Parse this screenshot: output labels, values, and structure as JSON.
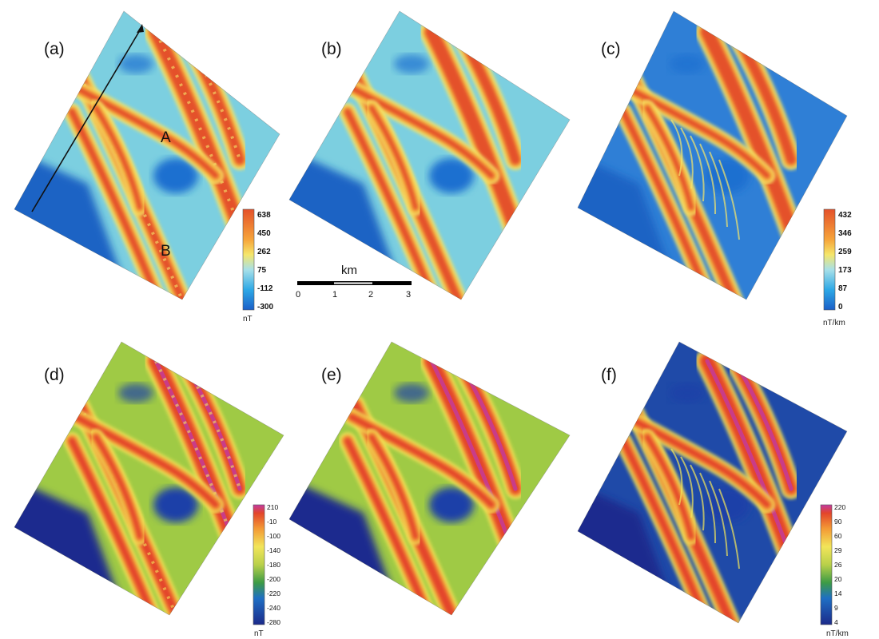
{
  "panels": [
    {
      "label": "(a)"
    },
    {
      "label": "(b)"
    },
    {
      "label": "(c)"
    },
    {
      "label": "(d)"
    },
    {
      "label": "(e)"
    },
    {
      "label": "(f)"
    }
  ],
  "features": {
    "a": "A",
    "b": "B"
  },
  "colorbars": {
    "a": {
      "ticks": [
        "638",
        "450",
        "262",
        "75",
        "-112",
        "-300"
      ],
      "unit": "nT"
    },
    "c": {
      "ticks": [
        "432",
        "346",
        "259",
        "173",
        "87",
        "0"
      ],
      "unit": "nT/km"
    },
    "d": {
      "ticks": [
        "210",
        "-10",
        "-100",
        "-140",
        "-180",
        "-200",
        "-220",
        "-240",
        "-280"
      ],
      "unit": "nT"
    },
    "f": {
      "ticks": [
        "220",
        "90",
        "60",
        "29",
        "26",
        "20",
        "14",
        "9",
        "4"
      ],
      "unit": "nT/km"
    }
  },
  "scalebar": {
    "title": "km",
    "ticks": [
      "0",
      "1",
      "2",
      "3"
    ]
  },
  "colors": {
    "rainbow_low": "#1e4fb5",
    "rainbow_mid": "#7fd3df",
    "rainbow_high": "#e4512a",
    "warm_low": "#1e2c8e",
    "warm_mid": "#7fb83a",
    "warm_high": "#e3452a",
    "warm_top": "#c23aa0"
  }
}
